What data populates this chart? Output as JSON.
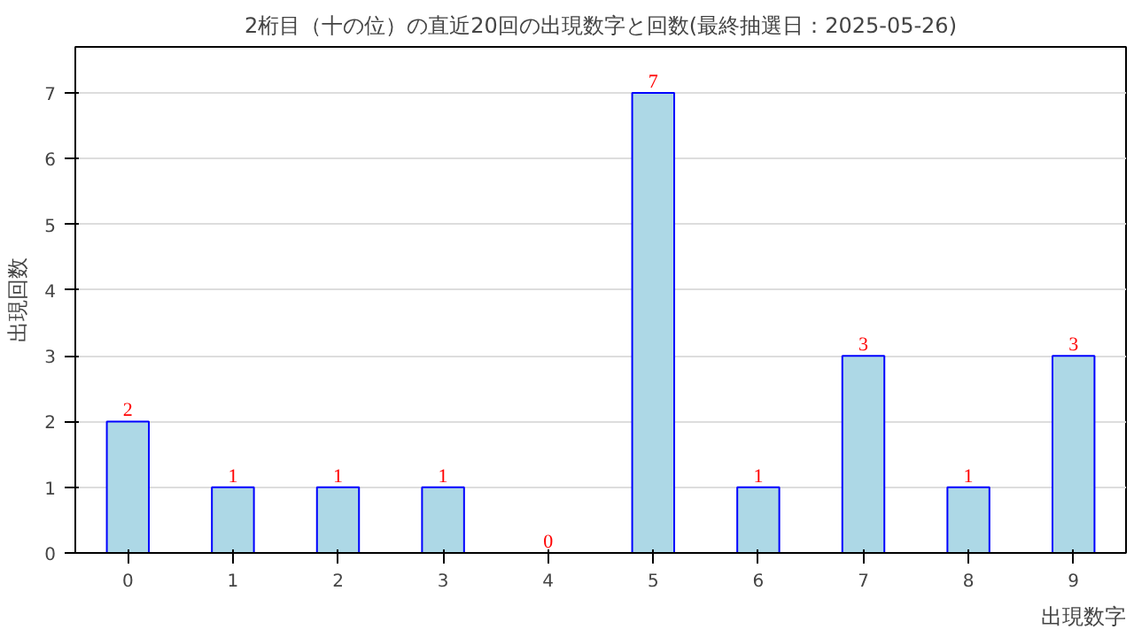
{
  "chart_data": {
    "type": "bar",
    "title": "2桁目（十の位）の直近20回の出現数字と回数(最終抽選日：2025-05-26)",
    "xlabel": "出現数字",
    "ylabel": "出現回数",
    "categories": [
      "0",
      "1",
      "2",
      "3",
      "4",
      "5",
      "6",
      "7",
      "8",
      "9"
    ],
    "values": [
      2,
      1,
      1,
      1,
      0,
      7,
      1,
      3,
      1,
      3
    ],
    "color": "#add8e6",
    "ylim": [
      0,
      7.7
    ],
    "yticks": [
      0,
      1,
      2,
      3,
      4,
      5,
      6,
      7
    ],
    "grid": "y",
    "data_labels": true
  }
}
